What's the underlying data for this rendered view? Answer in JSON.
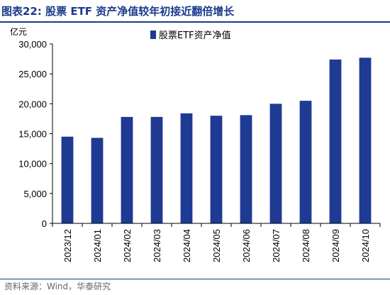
{
  "figure": {
    "title": "图表22:   股票 ETF 资产净值较年初接近翻倍增长",
    "source": "资料来源：Wind，华泰研究"
  },
  "colors": {
    "bar": "#1f3a93",
    "title": "#1a3a8c",
    "axis": "#000000"
  },
  "chart_data": {
    "type": "bar",
    "categories": [
      "2023/12",
      "2024/01",
      "2024/02",
      "2024/03",
      "2024/04",
      "2024/05",
      "2024/06",
      "2024/07",
      "2024/08",
      "2024/09",
      "2024/10"
    ],
    "series": [
      {
        "name": "股票ETF资产净值",
        "values": [
          14500,
          14300,
          17800,
          17800,
          18400,
          18000,
          18100,
          20000,
          20500,
          27400,
          27700
        ]
      }
    ],
    "yunit": "亿元",
    "ylim": [
      0,
      30000
    ],
    "yticks": [
      0,
      5000,
      10000,
      15000,
      20000,
      25000,
      30000
    ],
    "ytick_labels": [
      "0",
      "5,000",
      "10,000",
      "15,000",
      "20,000",
      "25,000",
      "30,000"
    ],
    "legend_position": "top-center",
    "grid": false
  }
}
